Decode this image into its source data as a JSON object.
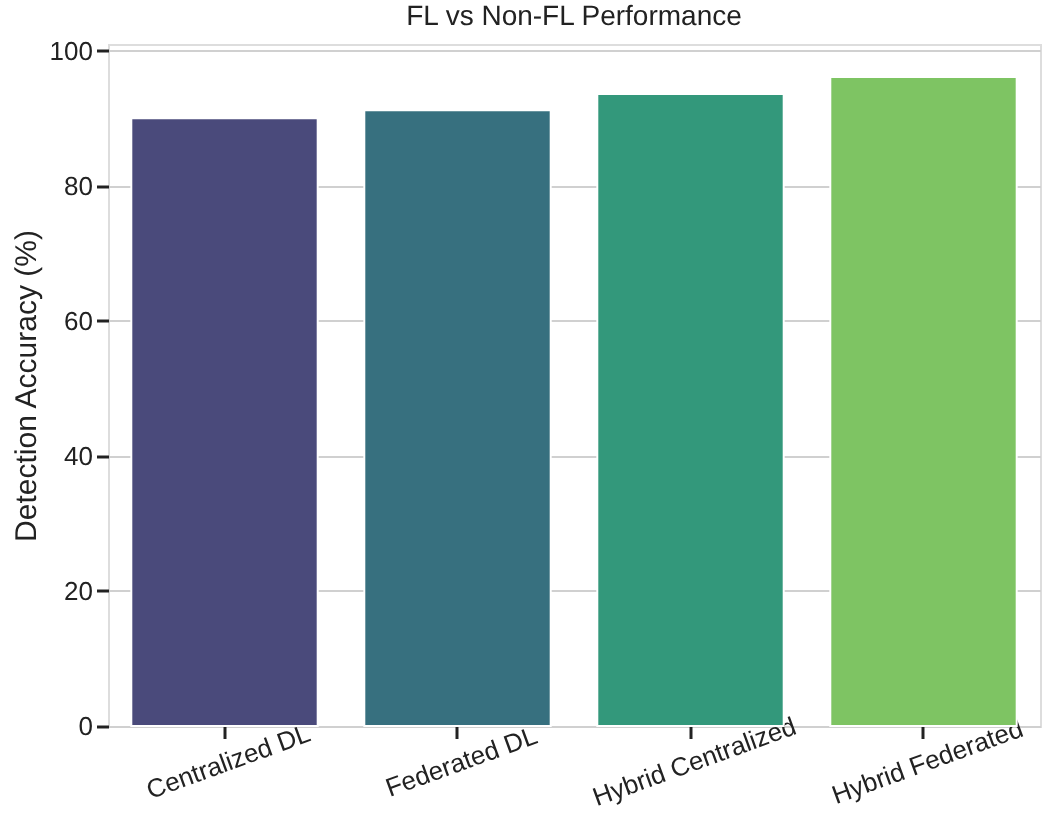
{
  "chart_data": {
    "type": "bar",
    "title": "FL vs Non-FL Performance",
    "ylabel": "Detection Accuracy (%)",
    "categories": [
      "Centralized DL",
      "Federated DL",
      "Hybrid Centralized",
      "Hybrid Federated"
    ],
    "values": [
      90,
      91.2,
      93.6,
      96.1
    ],
    "colors": [
      "#4a4a7b",
      "#37707f",
      "#33987b",
      "#7ec463"
    ],
    "ylim": [
      0,
      101
    ],
    "yticks": [
      0,
      20,
      40,
      60,
      80,
      100
    ],
    "grid": "y"
  }
}
